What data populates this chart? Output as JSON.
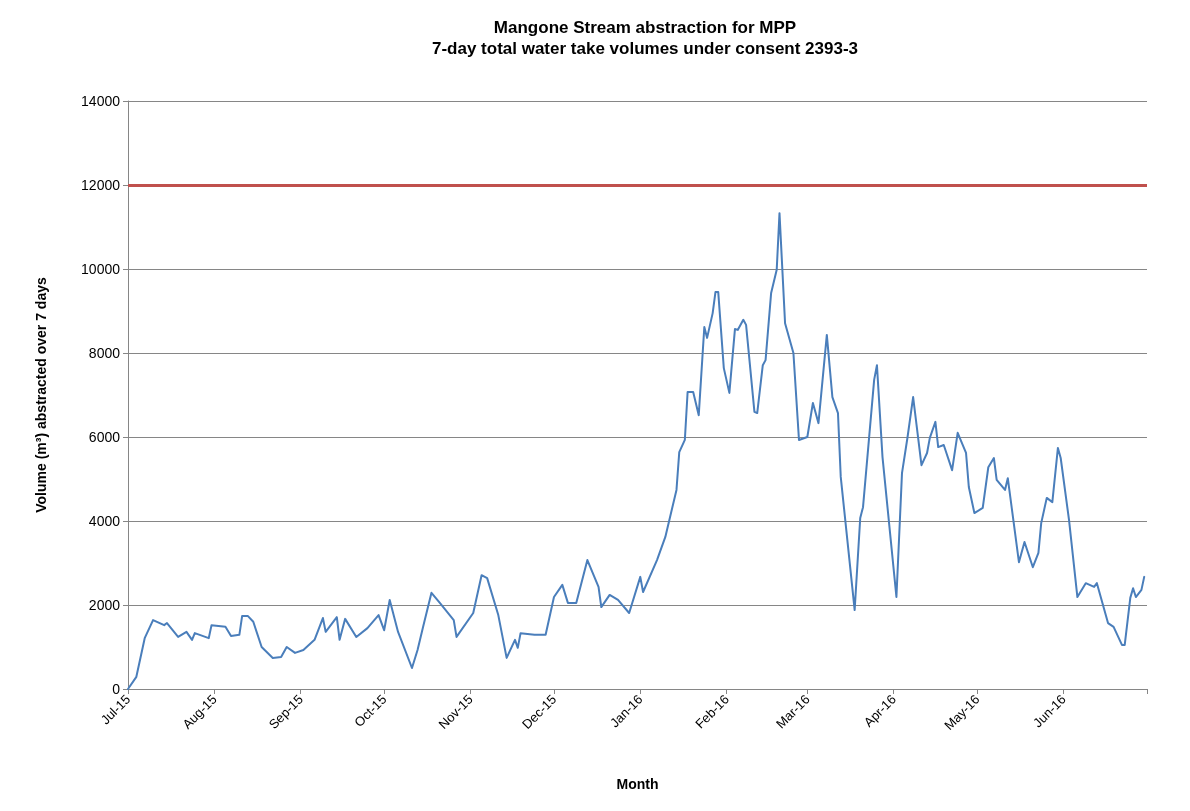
{
  "chart_data": {
    "type": "line",
    "title": "Mangone Stream abstraction for MPP",
    "subtitle": "7-day total water take volumes under consent 2393-3",
    "xlabel": "Month",
    "ylabel": "Volume (m³) abstracted over 7 days",
    "x": [
      "2015-07-01",
      "2015-07-04",
      "2015-07-07",
      "2015-07-10",
      "2015-07-14",
      "2015-07-15",
      "2015-07-19",
      "2015-07-22",
      "2015-07-24",
      "2015-07-25",
      "2015-07-30",
      "2015-07-31",
      "2015-08-05",
      "2015-08-07",
      "2015-08-10",
      "2015-08-11",
      "2015-08-13",
      "2015-08-15",
      "2015-08-18",
      "2015-08-22",
      "2015-08-25",
      "2015-08-27",
      "2015-08-30",
      "2015-09-02",
      "2015-09-06",
      "2015-09-09",
      "2015-09-10",
      "2015-09-14",
      "2015-09-15",
      "2015-09-17",
      "2015-09-21",
      "2015-09-25",
      "2015-09-29",
      "2015-10-01",
      "2015-10-03",
      "2015-10-06",
      "2015-10-11",
      "2015-10-13",
      "2015-10-15",
      "2015-10-18",
      "2015-10-21",
      "2015-10-26",
      "2015-10-27",
      "2015-11-02",
      "2015-11-05",
      "2015-11-07",
      "2015-11-11",
      "2015-11-14",
      "2015-11-17",
      "2015-11-18",
      "2015-11-19",
      "2015-11-24",
      "2015-11-28",
      "2015-12-01",
      "2015-12-04",
      "2015-12-06",
      "2015-12-09",
      "2015-12-13",
      "2015-12-17",
      "2015-12-18",
      "2015-12-21",
      "2015-12-24",
      "2015-12-28",
      "2016-01-01",
      "2016-01-02",
      "2016-01-07",
      "2016-01-10",
      "2016-01-14",
      "2016-01-15",
      "2016-01-17",
      "2016-01-18",
      "2016-01-20",
      "2016-01-22",
      "2016-01-24",
      "2016-01-25",
      "2016-01-27",
      "2016-01-28",
      "2016-01-29",
      "2016-01-31",
      "2016-02-02",
      "2016-02-04",
      "2016-02-05",
      "2016-02-07",
      "2016-02-08",
      "2016-02-11",
      "2016-02-12",
      "2016-02-14",
      "2016-02-15",
      "2016-02-17",
      "2016-02-19",
      "2016-02-20",
      "2016-02-22",
      "2016-02-25",
      "2016-02-27",
      "2016-03-01",
      "2016-03-03",
      "2016-03-05",
      "2016-03-08",
      "2016-03-10",
      "2016-03-12",
      "2016-03-13",
      "2016-03-18",
      "2016-03-20",
      "2016-03-21",
      "2016-03-25",
      "2016-03-26",
      "2016-03-28",
      "2016-04-02",
      "2016-04-04",
      "2016-04-06",
      "2016-04-08",
      "2016-04-11",
      "2016-04-13",
      "2016-04-14",
      "2016-04-16",
      "2016-04-17",
      "2016-04-19",
      "2016-04-22",
      "2016-04-24",
      "2016-04-27",
      "2016-04-28",
      "2016-04-30",
      "2016-05-03",
      "2016-05-05",
      "2016-05-07",
      "2016-05-08",
      "2016-05-11",
      "2016-05-12",
      "2016-05-14",
      "2016-05-16",
      "2016-05-18",
      "2016-05-21",
      "2016-05-23",
      "2016-05-24",
      "2016-05-26",
      "2016-05-28",
      "2016-05-30",
      "2016-05-31",
      "2016-06-03",
      "2016-06-06",
      "2016-06-09",
      "2016-06-12",
      "2016-06-13",
      "2016-06-17",
      "2016-06-19",
      "2016-06-22",
      "2016-06-23",
      "2016-06-25",
      "2016-06-26",
      "2016-06-27",
      "2016-06-29",
      "2016-06-30"
    ],
    "series": [
      {
        "color": "#4a7ebb",
        "values": [
          0,
          290,
          1210,
          1640,
          1520,
          1570,
          1240,
          1360,
          1170,
          1330,
          1210,
          1520,
          1480,
          1260,
          1290,
          1740,
          1740,
          1600,
          1000,
          740,
          760,
          1000,
          860,
          930,
          1170,
          1690,
          1360,
          1710,
          1170,
          1670,
          1240,
          1450,
          1760,
          1400,
          2120,
          1360,
          500,
          930,
          1480,
          2290,
          2050,
          1640,
          1240,
          1810,
          2710,
          2640,
          1760,
          740,
          1170,
          980,
          1330,
          1290,
          1290,
          2190,
          2480,
          2050,
          2050,
          3070,
          2430,
          1950,
          2240,
          2120,
          1810,
          2670,
          2310,
          3070,
          3620,
          4740,
          5640,
          5930,
          7070,
          7070,
          6520,
          8620,
          8360,
          8950,
          9450,
          9450,
          7640,
          7050,
          8570,
          8550,
          8790,
          8670,
          6600,
          6570,
          7710,
          7830,
          9430,
          9980,
          11330,
          8710,
          8000,
          5930,
          6000,
          6810,
          6330,
          8430,
          6950,
          6570,
          5050,
          1880,
          4070,
          4330,
          7360,
          7710,
          5520,
          2190,
          5140,
          6000,
          6950,
          5330,
          5620,
          5980,
          6360,
          5760,
          5810,
          5210,
          6100,
          5620,
          4810,
          4190,
          4310,
          5280,
          5500,
          4980,
          4740,
          5020,
          4020,
          3020,
          3500,
          2900,
          3240,
          3950,
          4550,
          4450,
          5740,
          5500,
          4020,
          2190,
          2520,
          2430,
          2520,
          1570,
          1480,
          1050,
          1050,
          2170,
          2400,
          2190,
          2360,
          2670
        ]
      }
    ],
    "xlim": [
      "2015-07-01",
      "2016-07-01"
    ],
    "xticks": [
      {
        "value": "2015-07-01",
        "label": "Jul-15"
      },
      {
        "value": "2015-08-01",
        "label": "Aug-15"
      },
      {
        "value": "2015-09-01",
        "label": "Sep-15"
      },
      {
        "value": "2015-10-01",
        "label": "Oct-15"
      },
      {
        "value": "2015-11-01",
        "label": "Nov-15"
      },
      {
        "value": "2015-12-01",
        "label": "Dec-15"
      },
      {
        "value": "2016-01-01",
        "label": "Jan-16"
      },
      {
        "value": "2016-02-01",
        "label": "Feb-16"
      },
      {
        "value": "2016-03-01",
        "label": "Mar-16"
      },
      {
        "value": "2016-04-01",
        "label": "Apr-16"
      },
      {
        "value": "2016-05-01",
        "label": "May-16"
      },
      {
        "value": "2016-06-01",
        "label": "Jun-16"
      },
      {
        "value": "2016-07-01",
        "label": null
      }
    ],
    "ylim": [
      0,
      14000
    ],
    "yticks": [
      0,
      2000,
      4000,
      6000,
      8000,
      10000,
      12000,
      14000
    ],
    "ref_lines": [
      {
        "axis": "y",
        "value": 12000,
        "label": null,
        "color": "#c0504d"
      }
    ],
    "grid": "y",
    "marker": "none",
    "line_style": "solid"
  }
}
